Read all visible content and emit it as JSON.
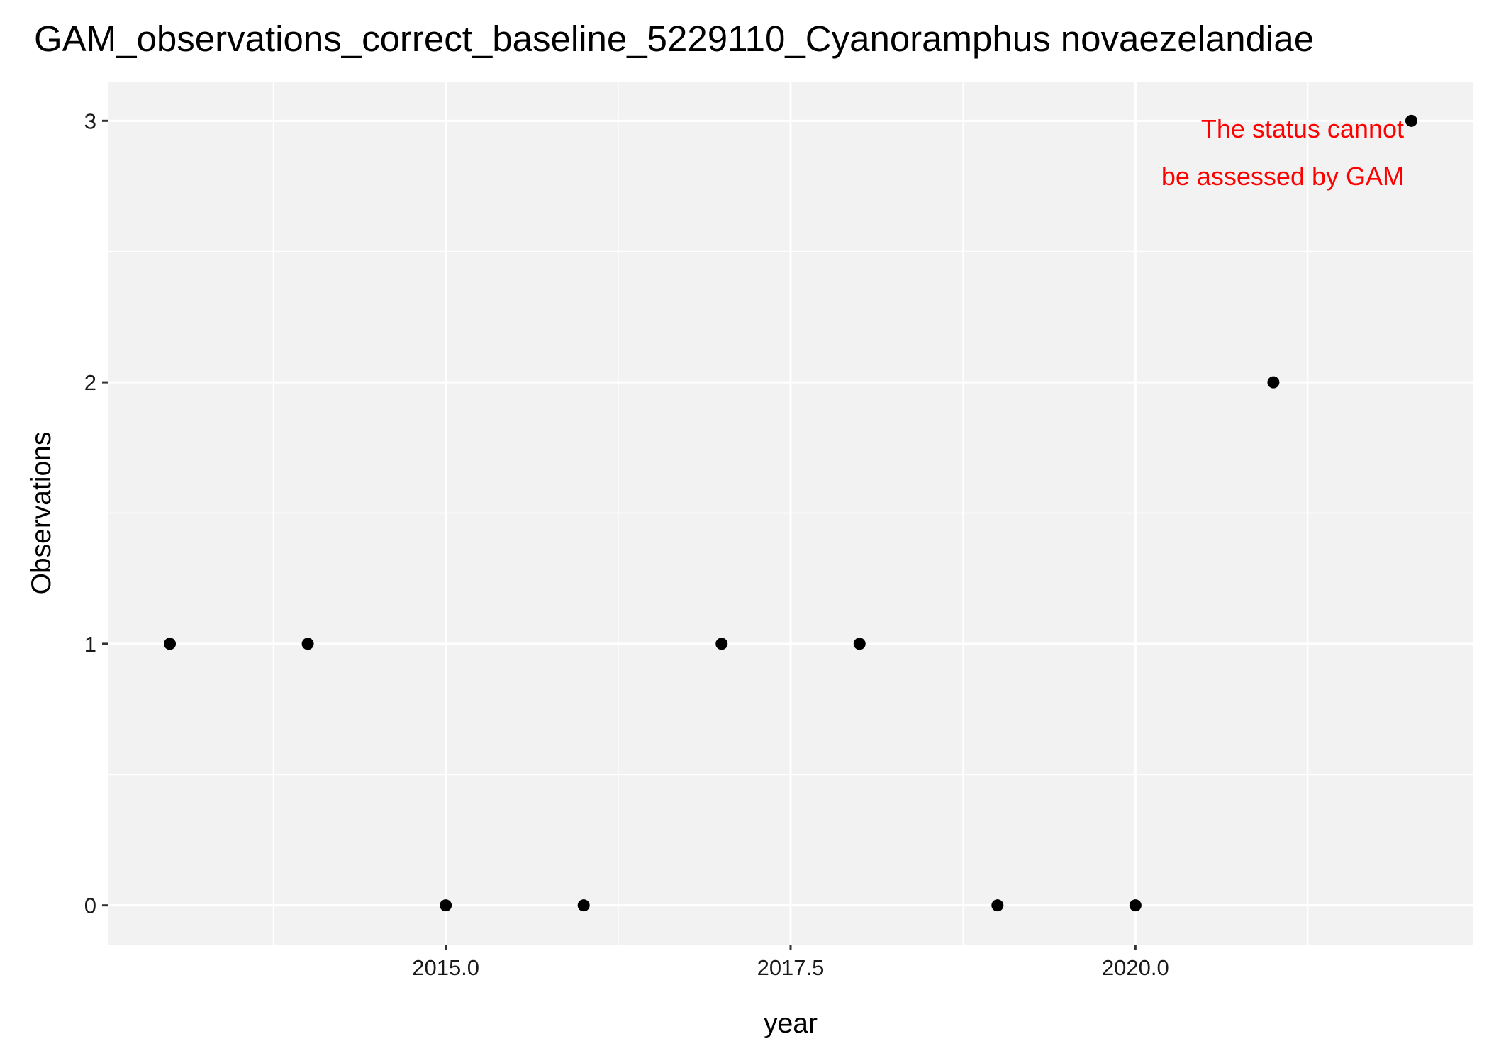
{
  "chart_data": {
    "type": "scatter",
    "title": "GAM_observations_correct_baseline_5229110_Cyanoramphus novaezelandiae",
    "xlabel": "year",
    "ylabel": "Observations",
    "xlim": [
      2012.55,
      2022.45
    ],
    "ylim": [
      -0.15,
      3.15
    ],
    "x_ticks": [
      2015.0,
      2017.5,
      2020.0
    ],
    "x_tick_labels": [
      "2015.0",
      "2017.5",
      "2020.0"
    ],
    "y_ticks": [
      0,
      1,
      2,
      3
    ],
    "y_tick_labels": [
      "0",
      "1",
      "2",
      "3"
    ],
    "grid": true,
    "legend": "none",
    "points": [
      {
        "x": 2013,
        "y": 1
      },
      {
        "x": 2014,
        "y": 1
      },
      {
        "x": 2015,
        "y": 0
      },
      {
        "x": 2016,
        "y": 0
      },
      {
        "x": 2017,
        "y": 1
      },
      {
        "x": 2018,
        "y": 1
      },
      {
        "x": 2019,
        "y": 0
      },
      {
        "x": 2020,
        "y": 0
      },
      {
        "x": 2021,
        "y": 2
      },
      {
        "x": 2022,
        "y": 3
      }
    ],
    "annotation": {
      "lines": [
        "The status cannot",
        "be assessed by GAM"
      ],
      "color": "#ff0000"
    },
    "colors": {
      "panel": "#f2f2f2",
      "grid": "#ffffff",
      "point": "#000000"
    }
  }
}
